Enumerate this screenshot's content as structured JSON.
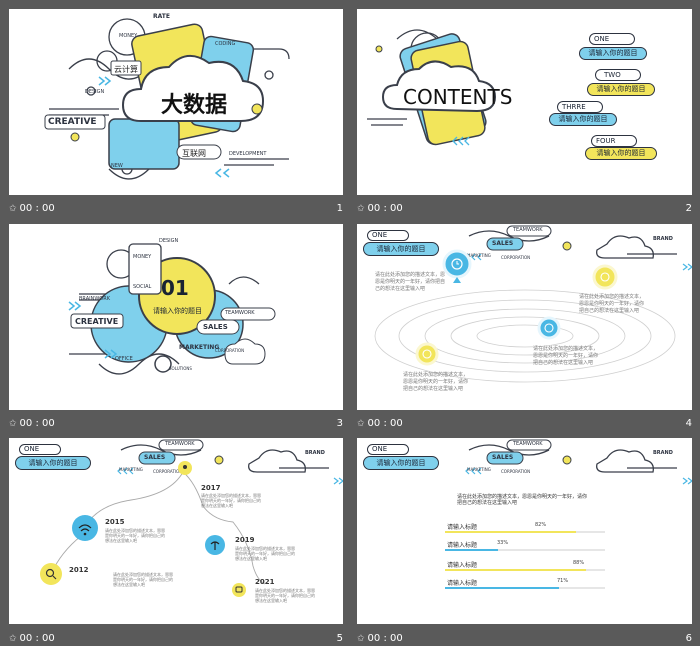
{
  "slides": [
    {
      "number": "1",
      "time": "00 : 00",
      "title": "大数据",
      "words": [
        "云计算",
        "互联网",
        "CREATIVE",
        "DEVELOPMENT",
        "CODING",
        "MONEY",
        "RATE",
        "DESIGN",
        "NEW"
      ]
    },
    {
      "number": "2",
      "time": "00 : 00",
      "title": "CONTENTS",
      "items": [
        {
          "tag": "ONE",
          "label": "请输入你的题目",
          "color": "#7fd0ec"
        },
        {
          "tag": "TWO",
          "label": "请输入你的题目",
          "color": "#f2e55b"
        },
        {
          "tag": "THRRE",
          "label": "请输入你的题目",
          "color": "#7fd0ec"
        },
        {
          "tag": "FOUR",
          "label": "请输入你的题目",
          "color": "#f2e55b"
        }
      ]
    },
    {
      "number": "3",
      "time": "00 : 00",
      "section_number": "01",
      "section_title": "请输入你的题目",
      "words": [
        "SOCIAL",
        "MONEY",
        "DESIGN",
        "BRAINWORK",
        "CREATIVE",
        "SALES",
        "TEAMWORK",
        "MARKETING",
        "CORPORATION",
        "OFFICE",
        "SOLUTIONS"
      ]
    },
    {
      "number": "4",
      "time": "00 : 00",
      "tag": "ONE",
      "heading": "请输入你的题目",
      "texts": [
        "请在此处添加您的描述文本，恩恩是你明天的一年好，请你把自己的想法在这里输入吧",
        "请在此处添加您的描述文本，恩恩是你明天的一年好，请你把自己的想法在这里输入吧",
        "请在此处添加您的描述文本，恩恩是你明天的一年好，请你把自己的想法在这里输入吧",
        "请在此处添加您的描述文本，恩恩是你明天的一年好，请你把自己的想法在这里输入吧"
      ],
      "banner_words": [
        "SALES",
        "TEAMWORK",
        "MARKETING",
        "CORPORATION",
        "BRAND"
      ]
    },
    {
      "number": "5",
      "time": "00 : 00",
      "tag": "ONE",
      "heading": "请输入你的题目",
      "years": [
        "2012",
        "2015",
        "2017",
        "2019",
        "2021"
      ],
      "text": "请在此处添加您的描述文本，恩恩是你明天的一年好，请你把自己的想法在这里输入吧",
      "banner_words": [
        "SALES",
        "TEAMWORK",
        "MARKETING",
        "CORPORATION",
        "BRAND"
      ]
    },
    {
      "number": "6",
      "time": "00 : 00",
      "tag": "ONE",
      "heading": "请输入你的题目",
      "intro": "请在此处添加您的描述文本，恩恩是你明天的一年好，请你把自己的想法在这里输入吧",
      "bars": [
        {
          "label": "请输入标题",
          "value": "82%",
          "fraction": 0.82,
          "color": "#f2e55b"
        },
        {
          "label": "请输入标题",
          "value": "33%",
          "fraction": 0.33,
          "color": "#49b7e4"
        },
        {
          "label": "请输入标题",
          "value": "88%",
          "fraction": 0.88,
          "color": "#f2e55b"
        },
        {
          "label": "请输入标题",
          "value": "71%",
          "fraction": 0.71,
          "color": "#49b7e4"
        }
      ],
      "banner_words": [
        "SALES",
        "TEAMWORK",
        "MARKETING",
        "CORPORATION",
        "BRAND"
      ]
    }
  ],
  "colors": {
    "yellow": "#f2e55b",
    "blue": "#7fd0ec",
    "deep_blue": "#49b7e4",
    "ink": "#3a3f4a",
    "frame": "#5a5a5a"
  },
  "icons": {
    "time_marker": "star-icon",
    "timeline": [
      "search-icon",
      "wifi-icon",
      "location-icon",
      "signal-icon",
      "chat-icon"
    ],
    "orbit": [
      "clock-icon"
    ]
  }
}
